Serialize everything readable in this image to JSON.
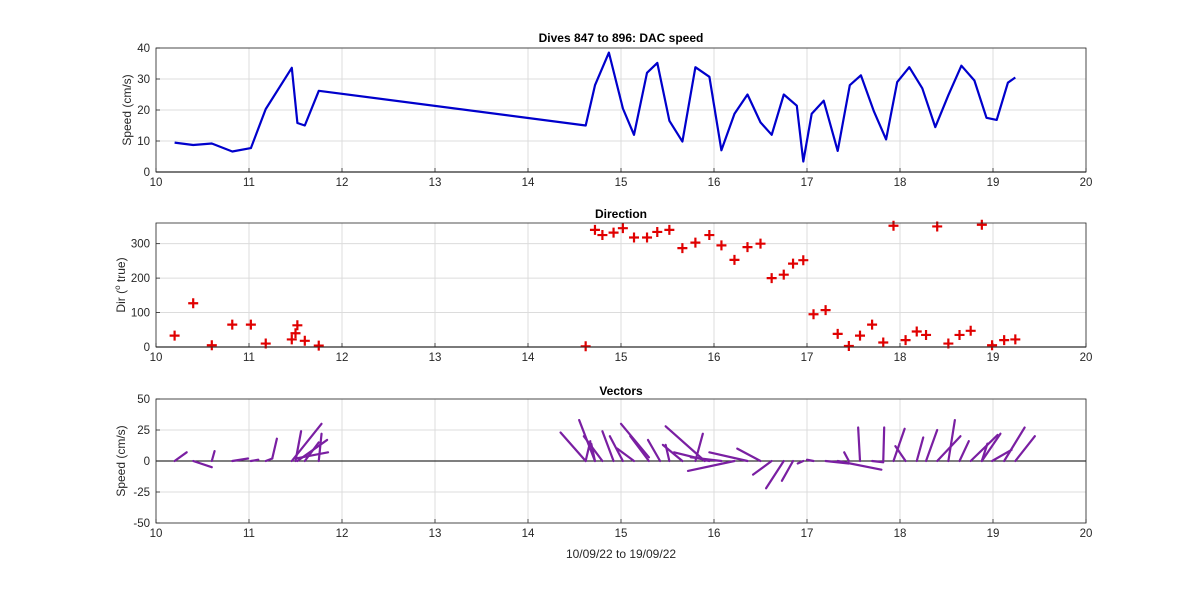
{
  "chart_data": [
    {
      "type": "line",
      "title": "Dives 847 to 896: DAC speed",
      "xlabel": "",
      "ylabel": "Speed (cm/s)",
      "xlim": [
        10,
        20
      ],
      "ylim": [
        0,
        40
      ],
      "xticks": [
        "10",
        "11",
        "12",
        "13",
        "14",
        "15",
        "16",
        "17",
        "18",
        "19",
        "20"
      ],
      "yticks": [
        "0",
        "10",
        "20",
        "30",
        "40"
      ],
      "grid": true,
      "series": [
        {
          "color": "#0000cc",
          "x": [
            10.2,
            10.4,
            10.6,
            10.82,
            11.02,
            11.18,
            11.46,
            11.52,
            11.6,
            11.75,
            14.62,
            14.72,
            14.87,
            15.02,
            15.14,
            15.28,
            15.39,
            15.52,
            15.66,
            15.8,
            15.95,
            16.08,
            16.22,
            16.36,
            16.5,
            16.62,
            16.75,
            16.89,
            16.96,
            17.05,
            17.18,
            17.33,
            17.46,
            17.58,
            17.72,
            17.85,
            17.97,
            18.1,
            18.24,
            18.38,
            18.52,
            18.66,
            18.8,
            18.93,
            19.04,
            19.16,
            19.24
          ],
          "y": [
            9.5,
            8.7,
            9.2,
            6.6,
            7.7,
            20.3,
            33.6,
            15.8,
            15,
            26.2,
            15,
            28,
            38.5,
            20.5,
            12,
            32,
            35.2,
            16.5,
            9.8,
            33.8,
            30.7,
            7,
            18.8,
            25,
            16,
            12,
            25,
            21.4,
            3.4,
            18.8,
            23,
            6.8,
            28,
            31.2,
            19.5,
            10.5,
            29,
            33.8,
            27,
            14.5,
            24.8,
            34.3,
            29.5,
            17.5,
            16.8,
            28.8,
            30.5
          ]
        }
      ]
    },
    {
      "type": "scatter",
      "title": "Direction",
      "xlabel": "",
      "ylabel": "Dir (",
      "ylabel_sup": "o",
      "ylabel_tail": " true)",
      "xlim": [
        10,
        20
      ],
      "ylim": [
        0,
        360
      ],
      "xticks": [
        "10",
        "11",
        "12",
        "13",
        "14",
        "15",
        "16",
        "17",
        "18",
        "19",
        "20"
      ],
      "yticks": [
        "0",
        "100",
        "200",
        "300"
      ],
      "grid": true,
      "series": [
        {
          "marker": "+",
          "color": "#e00000",
          "x": [
            10.2,
            10.4,
            10.6,
            10.82,
            11.02,
            11.18,
            11.46,
            11.5,
            11.52,
            11.6,
            11.75,
            14.62,
            14.72,
            14.8,
            14.92,
            15.02,
            15.14,
            15.28,
            15.39,
            15.52,
            15.66,
            15.8,
            15.95,
            16.08,
            16.22,
            16.36,
            16.5,
            16.62,
            16.75,
            16.85,
            16.96,
            17.07,
            17.2,
            17.33,
            17.45,
            17.57,
            17.7,
            17.82,
            17.93,
            18.06,
            18.18,
            18.28,
            18.4,
            18.52,
            18.64,
            18.76,
            18.88,
            18.99,
            19.12,
            19.24
          ],
          "y": [
            33,
            127,
            5,
            65,
            65,
            10,
            22,
            40,
            63,
            18,
            4,
            2,
            340,
            325,
            332,
            345,
            318,
            318,
            334,
            340,
            287,
            303,
            325,
            295,
            253,
            290,
            300,
            200,
            210,
            242,
            252,
            95,
            107,
            38,
            3,
            33,
            65,
            13,
            352,
            20,
            45,
            35,
            350,
            10,
            35,
            47,
            355,
            5,
            20,
            22
          ]
        }
      ]
    },
    {
      "type": "line",
      "title": "Vectors",
      "xlabel": "10/09/22 to 19/09/22",
      "ylabel": "Speed (cm/s)",
      "xlim": [
        10,
        20
      ],
      "ylim": [
        -50,
        50
      ],
      "xticks": [
        "10",
        "11",
        "12",
        "13",
        "14",
        "15",
        "16",
        "17",
        "18",
        "19",
        "20"
      ],
      "yticks": [
        "-50",
        "-25",
        "0",
        "25",
        "50"
      ],
      "grid": true,
      "series": [
        {
          "color": "#7a1fa2",
          "segments": [
            [
              10.2,
              0,
              10.33,
              7
            ],
            [
              10.4,
              0,
              10.6,
              -5
            ],
            [
              10.6,
              0,
              10.63,
              8
            ],
            [
              10.82,
              0,
              10.99,
              2
            ],
            [
              11.02,
              0,
              11.1,
              1
            ],
            [
              11.18,
              0,
              11.25,
              2
            ],
            [
              11.25,
              2,
              11.3,
              18
            ],
            [
              11.46,
              0,
              11.78,
              30
            ],
            [
              11.5,
              0,
              11.56,
              24
            ],
            [
              11.52,
              0,
              11.84,
              17
            ],
            [
              11.6,
              0,
              11.75,
              15
            ],
            [
              11.75,
              0,
              11.78,
              22
            ],
            [
              11.5,
              2,
              11.85,
              7
            ],
            [
              14.62,
              0,
              14.35,
              23
            ],
            [
              14.62,
              0,
              14.67,
              16
            ],
            [
              14.72,
              0,
              14.55,
              33
            ],
            [
              14.72,
              0,
              14.68,
              14
            ],
            [
              14.8,
              0,
              14.6,
              20
            ],
            [
              14.92,
              0,
              14.8,
              24
            ],
            [
              15.02,
              0,
              14.88,
              20
            ],
            [
              15.14,
              0,
              14.96,
              10
            ],
            [
              15.0,
              30,
              15.3,
              3
            ],
            [
              15.3,
              0,
              15.1,
              20
            ],
            [
              15.42,
              0,
              15.29,
              17
            ],
            [
              15.52,
              0,
              15.48,
              13
            ],
            [
              15.66,
              0,
              15.45,
              13
            ],
            [
              15.9,
              0,
              15.48,
              28
            ],
            [
              15.8,
              0,
              15.88,
              22
            ],
            [
              15.95,
              0,
              15.57,
              7
            ],
            [
              16.08,
              0,
              15.75,
              3
            ],
            [
              16.22,
              0,
              15.72,
              -8
            ],
            [
              16.36,
              0,
              15.95,
              7
            ],
            [
              16.5,
              0,
              16.25,
              10
            ],
            [
              16.62,
              0,
              16.42,
              -11
            ],
            [
              16.75,
              0,
              16.56,
              -22
            ],
            [
              16.85,
              0,
              16.73,
              -16
            ],
            [
              16.96,
              0,
              16.9,
              -2
            ],
            [
              17.07,
              0,
              17.0,
              1
            ],
            [
              17.2,
              0,
              17.45,
              -2
            ],
            [
              17.33,
              0,
              17.8,
              -7
            ],
            [
              17.45,
              0,
              17.4,
              7
            ],
            [
              17.57,
              0,
              17.55,
              27
            ],
            [
              17.7,
              0,
              17.82,
              -1
            ],
            [
              17.82,
              0,
              17.83,
              27
            ],
            [
              17.93,
              0,
              18.05,
              26
            ],
            [
              18.06,
              0,
              17.95,
              12
            ],
            [
              18.18,
              0,
              18.25,
              19
            ],
            [
              18.28,
              0,
              18.4,
              25
            ],
            [
              18.4,
              0,
              18.65,
              20
            ],
            [
              18.52,
              0,
              18.59,
              33
            ],
            [
              18.64,
              0,
              18.74,
              16
            ],
            [
              18.76,
              0,
              19.05,
              21
            ],
            [
              18.88,
              0,
              19.08,
              22
            ],
            [
              18.99,
              0,
              19.2,
              9
            ],
            [
              19.12,
              0,
              19.34,
              27
            ],
            [
              19.24,
              0,
              19.45,
              20
            ],
            [
              18.88,
              0,
              18.94,
              14
            ]
          ]
        }
      ]
    }
  ]
}
